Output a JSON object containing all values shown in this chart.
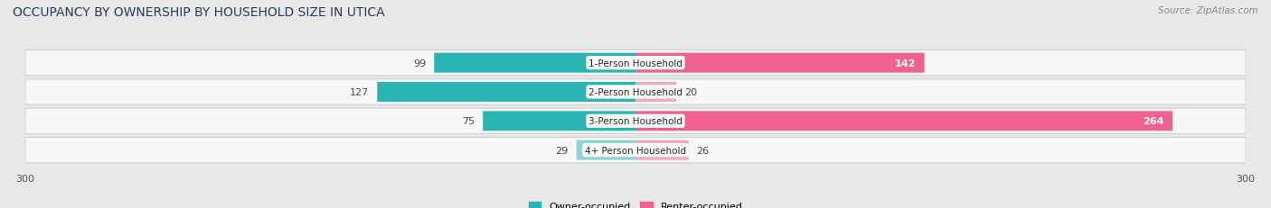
{
  "title": "OCCUPANCY BY OWNERSHIP BY HOUSEHOLD SIZE IN UTICA",
  "source": "Source: ZipAtlas.com",
  "categories": [
    "1-Person Household",
    "2-Person Household",
    "3-Person Household",
    "4+ Person Household"
  ],
  "owner_values": [
    99,
    127,
    75,
    29
  ],
  "renter_values": [
    142,
    20,
    264,
    26
  ],
  "owner_color_dark": "#2ab5b5",
  "owner_color_light": "#8ed4d4",
  "renter_color_dark": "#f06090",
  "renter_color_light": "#f0a8c8",
  "axis_max": 300,
  "bg_color": "#e8e8e8",
  "row_bg_color": "#f8f8f8",
  "row_edge_color": "#d0d0d0",
  "legend_owner": "Owner-occupied",
  "legend_renter": "Renter-occupied",
  "title_fontsize": 10,
  "source_fontsize": 7.5,
  "bar_label_fontsize": 8,
  "category_fontsize": 7.5,
  "dark_threshold": 60,
  "label_inside_threshold": 80
}
